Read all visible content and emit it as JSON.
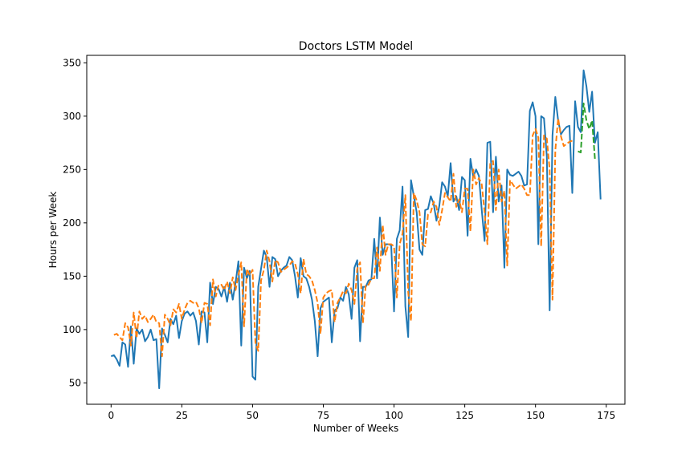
{
  "chart_data": {
    "type": "line",
    "title": "Doctors LSTM Model",
    "xlabel": "Number of Weeks",
    "ylabel": "Hours per Week",
    "xlim": [
      -8.6,
      181.6
    ],
    "ylim": [
      30,
      357
    ],
    "xticks": [
      0,
      25,
      50,
      75,
      100,
      125,
      150,
      175
    ],
    "yticks": [
      50,
      100,
      150,
      200,
      250,
      300,
      350
    ],
    "grid": false,
    "legend": "none",
    "series": [
      {
        "color": "#1f77b4",
        "style": "solid",
        "x_start": 0,
        "values": [
          75,
          76,
          72,
          66,
          88,
          86,
          65,
          103,
          68,
          101,
          96,
          100,
          89,
          93,
          100,
          90,
          91,
          45,
          101,
          95,
          88,
          110,
          105,
          113,
          92,
          108,
          115,
          117,
          113,
          116,
          108,
          86,
          117,
          116,
          88,
          144,
          124,
          140,
          138,
          131,
          140,
          126,
          144,
          128,
          144,
          164,
          85,
          158,
          148,
          155,
          56,
          53,
          140,
          157,
          174,
          168,
          140,
          168,
          166,
          150,
          155,
          158,
          160,
          168,
          165,
          150,
          130,
          167,
          150,
          148,
          140,
          128,
          108,
          75,
          120,
          126,
          128,
          130,
          88,
          118,
          120,
          130,
          127,
          140,
          133,
          110,
          158,
          165,
          89,
          140,
          140,
          146,
          147,
          185,
          148,
          205,
          170,
          180,
          180,
          179,
          117,
          185,
          193,
          234,
          122,
          93,
          240,
          225,
          210,
          175,
          170,
          212,
          213,
          225,
          218,
          202,
          216,
          238,
          234,
          225,
          256,
          220,
          225,
          212,
          243,
          240,
          188,
          260,
          243,
          250,
          244,
          212,
          183,
          275,
          276,
          210,
          262,
          220,
          235,
          158,
          250,
          245,
          244,
          246,
          248,
          244,
          235,
          236,
          305,
          313,
          300,
          180,
          300,
          298,
          262,
          118,
          282,
          318,
          296,
          283,
          287,
          290,
          291,
          228,
          314,
          290,
          285,
          343,
          328,
          304,
          323,
          275,
          285,
          222
        ]
      },
      {
        "color": "#ff7f0e",
        "style": "dashed",
        "x_start": 1,
        "values": [
          95,
          96,
          93,
          90,
          106,
          102,
          85,
          116,
          92,
          117,
          110,
          113,
          107,
          110,
          114,
          107,
          106,
          75,
          114,
          110,
          104,
          119,
          116,
          124,
          110,
          119,
          125,
          127,
          125,
          126,
          120,
          106,
          125,
          124,
          104,
          147,
          131,
          142,
          142,
          137,
          145,
          134,
          149,
          137,
          151,
          163,
          103,
          157,
          151,
          156,
          88,
          80,
          146,
          156,
          174,
          164,
          145,
          165,
          163,
          154,
          156,
          158,
          160,
          164,
          162,
          152,
          134,
          166,
          152,
          150,
          146,
          137,
          125,
          96,
          130,
          134,
          136,
          137,
          107,
          125,
          130,
          136,
          134,
          143,
          137,
          124,
          157,
          163,
          106,
          142,
          142,
          148,
          148,
          177,
          155,
          198,
          170,
          180,
          180,
          178,
          130,
          180,
          190,
          226,
          135,
          108,
          228,
          221,
          210,
          180,
          178,
          208,
          210,
          220,
          215,
          198,
          212,
          228,
          224,
          220,
          246,
          215,
          222,
          210,
          232,
          232,
          192,
          250,
          236,
          242,
          236,
          210,
          180,
          256,
          258,
          212,
          250,
          220,
          230,
          160,
          240,
          236,
          232,
          234,
          236,
          232,
          226,
          226,
          282,
          288,
          280,
          178,
          282,
          279,
          250,
          128,
          268,
          298,
          281,
          272,
          274,
          276,
          277
        ]
      },
      {
        "color": "#2ca02c",
        "style": "dashed",
        "x_start": 165,
        "values": [
          267,
          266,
          312,
          296,
          288,
          296,
          260
        ]
      }
    ]
  }
}
